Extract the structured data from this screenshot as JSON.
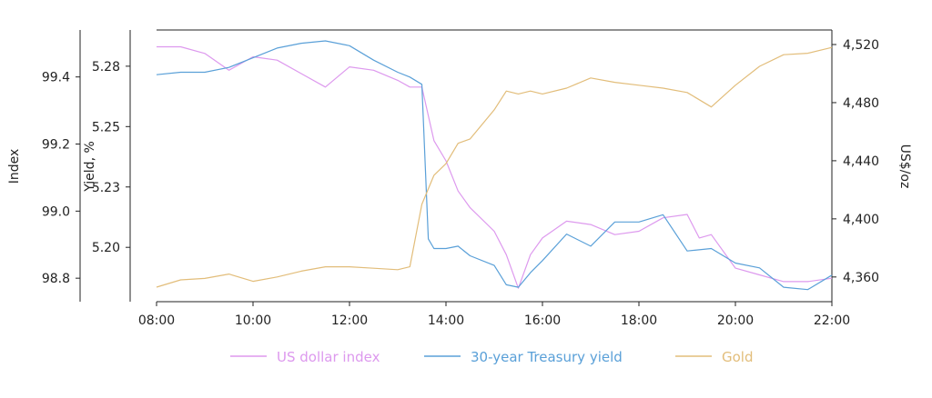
{
  "chart_data": {
    "type": "line",
    "x_axis": {
      "ticks": [
        "08:00",
        "10:00",
        "12:00",
        "14:00",
        "16:00",
        "18:00",
        "20:00",
        "22:00"
      ],
      "range": [
        "08:00",
        "22:00"
      ]
    },
    "axes": {
      "index": {
        "label": "Index",
        "ticks": [
          "98.8",
          "99.0",
          "99.2",
          "99.4"
        ],
        "tick_values": [
          98.8,
          99.0,
          99.2,
          99.4
        ],
        "range": [
          98.73,
          99.54
        ]
      },
      "yield": {
        "label": "Yield, %",
        "ticks": [
          "5.20",
          "5.23",
          "5.25",
          "5.28"
        ],
        "tick_values": [
          5.2,
          5.225,
          5.25,
          5.275
        ],
        "range": [
          5.1775,
          5.29
        ]
      },
      "gold": {
        "label": "US$/oz",
        "ticks": [
          "4,360",
          "4,400",
          "4,440",
          "4,480",
          "4,520"
        ],
        "tick_values": [
          4360,
          4400,
          4440,
          4480,
          4520
        ],
        "range": [
          4343,
          4530
        ]
      }
    },
    "series": [
      {
        "name": "US dollar index",
        "axis": "index",
        "color": "#dd99ee",
        "points": [
          [
            "08:00",
            99.49
          ],
          [
            "08:30",
            99.49
          ],
          [
            "09:00",
            99.47
          ],
          [
            "09:30",
            99.42
          ],
          [
            "10:00",
            99.46
          ],
          [
            "10:30",
            99.45
          ],
          [
            "11:00",
            99.41
          ],
          [
            "11:30",
            99.37
          ],
          [
            "12:00",
            99.43
          ],
          [
            "12:30",
            99.42
          ],
          [
            "13:00",
            99.39
          ],
          [
            "13:15",
            99.37
          ],
          [
            "13:30",
            99.37
          ],
          [
            "13:45",
            99.21
          ],
          [
            "14:00",
            99.15
          ],
          [
            "14:15",
            99.06
          ],
          [
            "14:30",
            99.01
          ],
          [
            "15:00",
            98.94
          ],
          [
            "15:15",
            98.87
          ],
          [
            "15:30",
            98.77
          ],
          [
            "15:45",
            98.87
          ],
          [
            "16:00",
            98.92
          ],
          [
            "16:30",
            98.97
          ],
          [
            "17:00",
            98.96
          ],
          [
            "17:30",
            98.93
          ],
          [
            "18:00",
            98.94
          ],
          [
            "18:30",
            98.98
          ],
          [
            "19:00",
            98.99
          ],
          [
            "19:15",
            98.92
          ],
          [
            "19:30",
            98.93
          ],
          [
            "20:00",
            98.83
          ],
          [
            "20:30",
            98.81
          ],
          [
            "21:00",
            98.79
          ],
          [
            "21:30",
            98.79
          ],
          [
            "22:00",
            98.8
          ]
        ]
      },
      {
        "name": "30-year Treasury yield",
        "axis": "yield",
        "color": "#5aa0d8",
        "points": [
          [
            "08:00",
            5.2715
          ],
          [
            "08:30",
            5.2725
          ],
          [
            "09:00",
            5.2725
          ],
          [
            "09:30",
            5.2745
          ],
          [
            "10:00",
            5.2785
          ],
          [
            "10:30",
            5.2825
          ],
          [
            "11:00",
            5.2845
          ],
          [
            "11:30",
            5.2855
          ],
          [
            "12:00",
            5.2835
          ],
          [
            "12:30",
            5.2775
          ],
          [
            "13:00",
            5.2725
          ],
          [
            "13:15",
            5.2705
          ],
          [
            "13:30",
            5.2675
          ],
          [
            "13:38",
            5.2035
          ],
          [
            "13:45",
            5.1995
          ],
          [
            "14:00",
            5.1995
          ],
          [
            "14:15",
            5.2005
          ],
          [
            "14:30",
            5.1965
          ],
          [
            "15:00",
            5.1925
          ],
          [
            "15:15",
            5.1845
          ],
          [
            "15:30",
            5.1835
          ],
          [
            "15:45",
            5.1895
          ],
          [
            "16:00",
            5.1945
          ],
          [
            "16:30",
            5.2055
          ],
          [
            "17:00",
            5.2005
          ],
          [
            "17:30",
            5.2105
          ],
          [
            "18:00",
            5.2105
          ],
          [
            "18:30",
            5.2135
          ],
          [
            "19:00",
            5.1985
          ],
          [
            "19:30",
            5.1995
          ],
          [
            "20:00",
            5.1935
          ],
          [
            "20:30",
            5.1915
          ],
          [
            "21:00",
            5.1835
          ],
          [
            "21:30",
            5.1825
          ],
          [
            "22:00",
            5.1885
          ]
        ]
      },
      {
        "name": "Gold",
        "axis": "gold",
        "color": "#e2bd7a",
        "points": [
          [
            "08:00",
            4353
          ],
          [
            "08:30",
            4358
          ],
          [
            "09:00",
            4359
          ],
          [
            "09:30",
            4362
          ],
          [
            "10:00",
            4357
          ],
          [
            "10:30",
            4360
          ],
          [
            "11:00",
            4364
          ],
          [
            "11:30",
            4367
          ],
          [
            "12:00",
            4367
          ],
          [
            "12:30",
            4366
          ],
          [
            "13:00",
            4365
          ],
          [
            "13:15",
            4367
          ],
          [
            "13:30",
            4410
          ],
          [
            "13:45",
            4430
          ],
          [
            "14:00",
            4438
          ],
          [
            "14:15",
            4452
          ],
          [
            "14:30",
            4455
          ],
          [
            "15:00",
            4475
          ],
          [
            "15:15",
            4488
          ],
          [
            "15:30",
            4486
          ],
          [
            "15:45",
            4488
          ],
          [
            "16:00",
            4486
          ],
          [
            "16:30",
            4490
          ],
          [
            "17:00",
            4497
          ],
          [
            "17:30",
            4494
          ],
          [
            "18:00",
            4492
          ],
          [
            "18:30",
            4490
          ],
          [
            "19:00",
            4487
          ],
          [
            "19:30",
            4477
          ],
          [
            "20:00",
            4492
          ],
          [
            "20:30",
            4505
          ],
          [
            "21:00",
            4513
          ],
          [
            "21:30",
            4514
          ],
          [
            "22:00",
            4518
          ]
        ]
      }
    ],
    "grid": false,
    "legend_position": "bottom"
  }
}
